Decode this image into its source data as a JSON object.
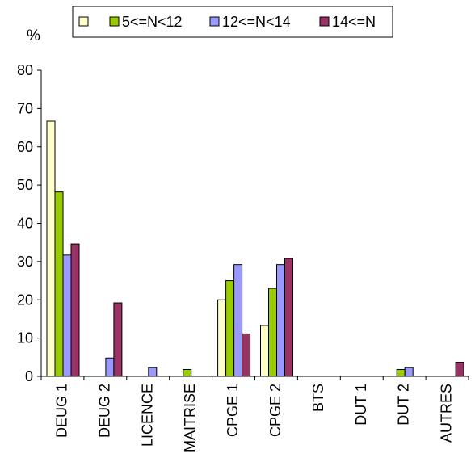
{
  "chart_data": {
    "type": "bar",
    "ylabel": "%",
    "ylim": [
      0,
      80
    ],
    "yticks": [
      0,
      10,
      20,
      30,
      40,
      50,
      60,
      70,
      80
    ],
    "grid": false,
    "legend_position": "top",
    "categories": [
      "DEUG 1",
      "DEUG 2",
      "LICENCE",
      "MAITRISE",
      "CPGE 1",
      "CPGE 2",
      "BTS",
      "DUT 1",
      "DUT 2",
      "AUTRES"
    ],
    "series": [
      {
        "name": "",
        "color": "#FFFFCC",
        "values": [
          66.7,
          0,
          0,
          0,
          20,
          13.3,
          0,
          0,
          0,
          0
        ]
      },
      {
        "name": "5<=N<12",
        "color": "#99CC00",
        "values": [
          48.2,
          0,
          0,
          1.8,
          25,
          23,
          0,
          0,
          1.8,
          0
        ]
      },
      {
        "name": "12<=N<14",
        "color": "#9999FF",
        "values": [
          31.7,
          4.8,
          2.3,
          0,
          29.2,
          29.2,
          0,
          0,
          2.3,
          0
        ]
      },
      {
        "name": "14<=N",
        "color": "#993366",
        "values": [
          34.6,
          19.2,
          0,
          0,
          11.1,
          30.8,
          0,
          0,
          0,
          3.7
        ]
      }
    ]
  }
}
